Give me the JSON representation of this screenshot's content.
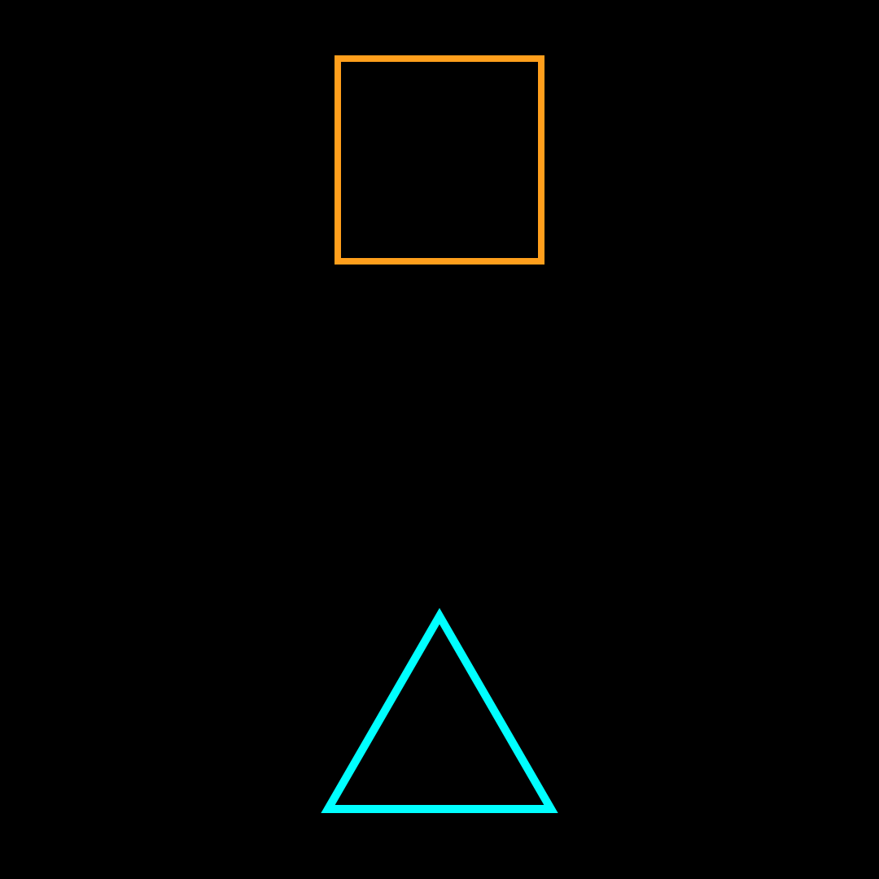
{
  "background_color": "#000000",
  "shapes": [
    {
      "kind": "square",
      "name": "orange-square-outline",
      "stroke_color": "#FF9F1C",
      "fill": "none"
    },
    {
      "kind": "triangle",
      "name": "cyan-triangle-outline",
      "stroke_color": "#00FFFF",
      "fill": "none"
    }
  ]
}
